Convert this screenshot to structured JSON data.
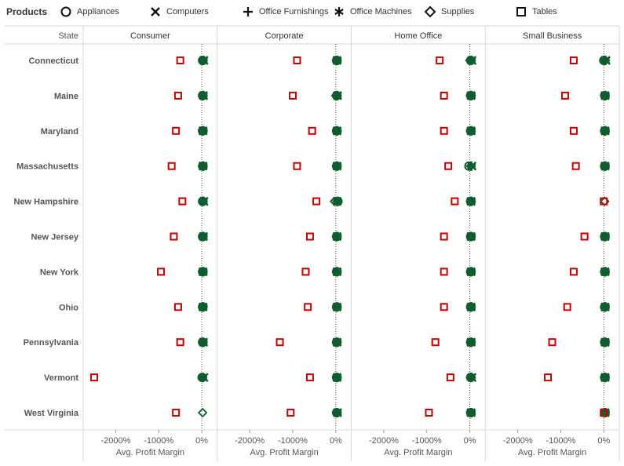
{
  "legend": {
    "title": "Products",
    "items": [
      {
        "label": "Appliances",
        "marker": "circle"
      },
      {
        "label": "Computers",
        "marker": "x"
      },
      {
        "label": "Office Furnishings",
        "marker": "plus"
      },
      {
        "label": "Office Machines",
        "marker": "asterisk"
      },
      {
        "label": "Supplies",
        "marker": "diamond"
      },
      {
        "label": "Tables",
        "marker": "square"
      }
    ]
  },
  "colors": {
    "tables": "#c00000",
    "other": "#0f5c2e",
    "grid": "#d9d9d9",
    "axis_text": "#555555"
  },
  "chart_data": {
    "type": "scatter",
    "row_header": "State",
    "columns": [
      "Consumer",
      "Corporate",
      "Home Office",
      "Small Business"
    ],
    "rows": [
      "Connecticut",
      "Maine",
      "Maryland",
      "Massachusetts",
      "New Hampshire",
      "New Jersey",
      "New York",
      "Ohio",
      "Pennsylvania",
      "Vermont",
      "West Virginia"
    ],
    "xlabel": "Avg. Profit Margin",
    "xticks": [
      -2000,
      -1000,
      0
    ],
    "xtick_labels": [
      "-2000%",
      "-1000%",
      "0%"
    ],
    "xlim": [
      -2500,
      250
    ],
    "reference_line": 0,
    "tables": [
      [
        -500,
        -550,
        -600,
        -700,
        -450,
        -650,
        -950,
        -550,
        -500,
        -2500,
        -600
      ],
      [
        -900,
        -1000,
        -550,
        -900,
        -450,
        -600,
        -700,
        -650,
        -1300,
        -600,
        -1050
      ],
      [
        -700,
        -600,
        -600,
        -500,
        -350,
        -600,
        -600,
        -600,
        -800,
        -450,
        -950
      ],
      [
        -700,
        -900,
        -700,
        -650,
        0,
        -450,
        -700,
        -850,
        -1200,
        -1300,
        0
      ]
    ],
    "other_products": [
      [
        "Appliances",
        "Computers",
        "Office Furnishings",
        "Office Machines",
        "Supplies"
      ],
      [
        "Appliances",
        "Computers",
        "Office Furnishings",
        "Office Machines",
        "Supplies"
      ],
      [
        "Appliances",
        "Computers",
        "Office Furnishings",
        "Office Machines",
        "Supplies"
      ],
      [
        "Appliances",
        "Computers",
        "Office Furnishings",
        "Office Machines",
        "Supplies"
      ]
    ],
    "other_values": [
      [
        [
          20,
          50,
          30,
          40,
          20
        ],
        [
          20,
          40,
          30,
          40,
          20
        ],
        [
          20,
          30,
          30,
          40,
          20
        ],
        [
          20,
          30,
          30,
          40,
          20
        ],
        [
          20,
          50,
          30,
          40,
          20
        ],
        [
          20,
          40,
          30,
          40,
          20
        ],
        [
          20,
          30,
          30,
          40,
          20
        ],
        [
          20,
          30,
          30,
          40,
          20
        ],
        [
          20,
          40,
          30,
          40,
          20
        ],
        [
          10,
          50,
          20,
          30,
          10
        ],
        [
          null,
          null,
          null,
          null,
          20
        ]
      ],
      [
        [
          20,
          30,
          30,
          40,
          20
        ],
        [
          20,
          40,
          30,
          40,
          0
        ],
        [
          20,
          30,
          30,
          40,
          20
        ],
        [
          20,
          30,
          30,
          40,
          20
        ],
        [
          50,
          30,
          30,
          40,
          -30
        ],
        [
          20,
          30,
          30,
          40,
          20
        ],
        [
          20,
          30,
          30,
          40,
          20
        ],
        [
          20,
          30,
          30,
          40,
          20
        ],
        [
          20,
          30,
          30,
          40,
          20
        ],
        [
          20,
          30,
          30,
          40,
          20
        ],
        [
          20,
          40,
          30,
          40,
          20
        ]
      ],
      [
        [
          20,
          50,
          30,
          40,
          0
        ],
        [
          20,
          30,
          30,
          40,
          20
        ],
        [
          20,
          30,
          30,
          40,
          20
        ],
        [
          -20,
          50,
          30,
          40,
          20
        ],
        [
          20,
          30,
          30,
          40,
          20
        ],
        [
          20,
          30,
          30,
          40,
          20
        ],
        [
          20,
          30,
          30,
          40,
          20
        ],
        [
          20,
          30,
          30,
          40,
          20
        ],
        [
          20,
          30,
          30,
          40,
          20
        ],
        [
          20,
          50,
          30,
          40,
          20
        ],
        [
          20,
          30,
          30,
          40,
          20
        ]
      ],
      [
        [
          0,
          50,
          30,
          40,
          20
        ],
        [
          20,
          30,
          30,
          40,
          20
        ],
        [
          20,
          30,
          30,
          40,
          20
        ],
        [
          20,
          30,
          30,
          40,
          20
        ],
        [
          null,
          null,
          null,
          null,
          20
        ],
        [
          20,
          30,
          30,
          40,
          20
        ],
        [
          20,
          30,
          30,
          40,
          20
        ],
        [
          20,
          30,
          30,
          40,
          20
        ],
        [
          20,
          30,
          30,
          40,
          20
        ],
        [
          20,
          30,
          30,
          40,
          20
        ],
        [
          20,
          30,
          30,
          40,
          20
        ]
      ]
    ],
    "grid": true,
    "legend_position": "top"
  }
}
